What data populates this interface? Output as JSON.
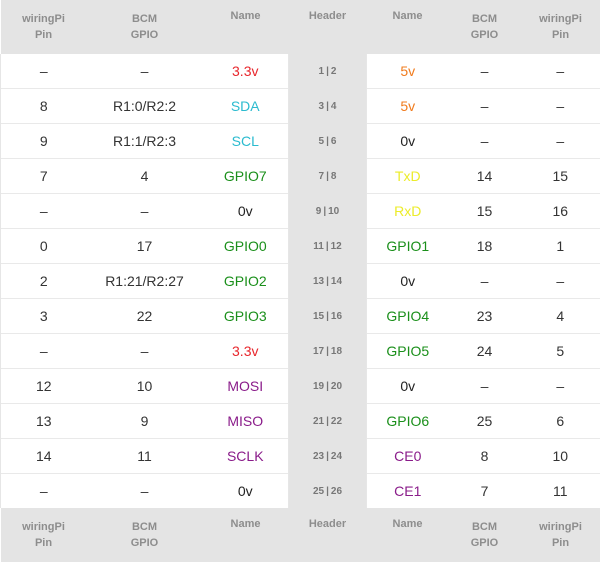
{
  "header": {
    "wiringpi": [
      "wiringPi",
      "Pin"
    ],
    "bcm": [
      "BCM",
      "GPIO"
    ],
    "name": "Name",
    "header": "Header"
  },
  "colors": {
    "red": "#e8262c",
    "orange": "#f07b1d",
    "cyan": "#2bbbcf",
    "green": "#1a8f1a",
    "yellow": "#ecec2a",
    "purple": "#8a1c8a",
    "black": "#222222"
  },
  "rows": [
    {
      "lwp": "–",
      "lbcm": "–",
      "lname": "3.3v",
      "lcolor": "red",
      "pinL": "1",
      "pinR": "2",
      "rname": "5v",
      "rcolor": "orange",
      "rbcm": "–",
      "rwp": "–"
    },
    {
      "lwp": "8",
      "lbcm": "R1:0/R2:2",
      "lname": "SDA",
      "lcolor": "cyan",
      "pinL": "3",
      "pinR": "4",
      "rname": "5v",
      "rcolor": "orange",
      "rbcm": "–",
      "rwp": "–"
    },
    {
      "lwp": "9",
      "lbcm": "R1:1/R2:3",
      "lname": "SCL",
      "lcolor": "cyan",
      "pinL": "5",
      "pinR": "6",
      "rname": "0v",
      "rcolor": "black",
      "rbcm": "–",
      "rwp": "–"
    },
    {
      "lwp": "7",
      "lbcm": "4",
      "lname": "GPIO7",
      "lcolor": "green",
      "pinL": "7",
      "pinR": "8",
      "rname": "TxD",
      "rcolor": "yellow",
      "rbcm": "14",
      "rwp": "15"
    },
    {
      "lwp": "–",
      "lbcm": "–",
      "lname": "0v",
      "lcolor": "black",
      "pinL": "9",
      "pinR": "10",
      "rname": "RxD",
      "rcolor": "yellow",
      "rbcm": "15",
      "rwp": "16"
    },
    {
      "lwp": "0",
      "lbcm": "17",
      "lname": "GPIO0",
      "lcolor": "green",
      "pinL": "11",
      "pinR": "12",
      "rname": "GPIO1",
      "rcolor": "green",
      "rbcm": "18",
      "rwp": "1"
    },
    {
      "lwp": "2",
      "lbcm": "R1:21/R2:27",
      "lname": "GPIO2",
      "lcolor": "green",
      "pinL": "13",
      "pinR": "14",
      "rname": "0v",
      "rcolor": "black",
      "rbcm": "–",
      "rwp": "–"
    },
    {
      "lwp": "3",
      "lbcm": "22",
      "lname": "GPIO3",
      "lcolor": "green",
      "pinL": "15",
      "pinR": "16",
      "rname": "GPIO4",
      "rcolor": "green",
      "rbcm": "23",
      "rwp": "4"
    },
    {
      "lwp": "–",
      "lbcm": "–",
      "lname": "3.3v",
      "lcolor": "red",
      "pinL": "17",
      "pinR": "18",
      "rname": "GPIO5",
      "rcolor": "green",
      "rbcm": "24",
      "rwp": "5"
    },
    {
      "lwp": "12",
      "lbcm": "10",
      "lname": "MOSI",
      "lcolor": "purple",
      "pinL": "19",
      "pinR": "20",
      "rname": "0v",
      "rcolor": "black",
      "rbcm": "–",
      "rwp": "–"
    },
    {
      "lwp": "13",
      "lbcm": "9",
      "lname": "MISO",
      "lcolor": "purple",
      "pinL": "21",
      "pinR": "22",
      "rname": "GPIO6",
      "rcolor": "green",
      "rbcm": "25",
      "rwp": "6"
    },
    {
      "lwp": "14",
      "lbcm": "11",
      "lname": "SCLK",
      "lcolor": "purple",
      "pinL": "23",
      "pinR": "24",
      "rname": "CE0",
      "rcolor": "purple",
      "rbcm": "8",
      "rwp": "10"
    },
    {
      "lwp": "–",
      "lbcm": "–",
      "lname": "0v",
      "lcolor": "black",
      "pinL": "25",
      "pinR": "26",
      "rname": "CE1",
      "rcolor": "purple",
      "rbcm": "7",
      "rwp": "11"
    }
  ]
}
